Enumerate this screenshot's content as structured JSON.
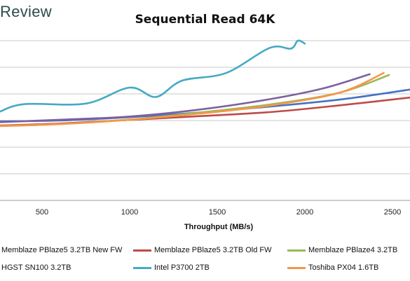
{
  "brand": "Review",
  "chart_data": {
    "type": "line",
    "title": "Sequential Read 64K",
    "xlabel": "Throughput (MB/s)",
    "ylabel": "",
    "x_ticks": [
      500,
      1000,
      1500,
      2000,
      2500
    ],
    "xlim": [
      260,
      2600
    ],
    "ylim": [
      0,
      8
    ],
    "grid": true,
    "legend_position": "bottom",
    "series": [
      {
        "name": "Memblaze PBlaze5 3.2TB New FW",
        "color": "#4472c4",
        "points": [
          [
            260,
            4.04
          ],
          [
            600,
            4.0
          ],
          [
            1000,
            3.83
          ],
          [
            1400,
            3.6
          ],
          [
            1800,
            3.3
          ],
          [
            2200,
            2.95
          ],
          [
            2600,
            2.45
          ]
        ]
      },
      {
        "name": "Memblaze PBlaze5 3.2TB Old FW",
        "color": "#be4b48",
        "points": [
          [
            260,
            4.25
          ],
          [
            600,
            4.15
          ],
          [
            1000,
            3.97
          ],
          [
            1400,
            3.78
          ],
          [
            1800,
            3.58
          ],
          [
            2200,
            3.24
          ],
          [
            2600,
            2.85
          ]
        ]
      },
      {
        "name": "Memblaze PBlaze4 3.2TB",
        "color": "#98b954",
        "points": [
          [
            260,
            4.27
          ],
          [
            600,
            4.18
          ],
          [
            1000,
            3.95
          ],
          [
            1400,
            3.6
          ],
          [
            1800,
            3.2
          ],
          [
            2200,
            2.6
          ],
          [
            2480,
            1.72
          ]
        ]
      },
      {
        "name": "HGST SN100 3.2TB",
        "color": "#7d60a0",
        "points": [
          [
            260,
            4.08
          ],
          [
            600,
            3.96
          ],
          [
            1000,
            3.8
          ],
          [
            1400,
            3.45
          ],
          [
            1800,
            2.93
          ],
          [
            2100,
            2.4
          ],
          [
            2370,
            1.68
          ]
        ]
      },
      {
        "name": "Intel P3700 2TB",
        "color": "#46aac4",
        "points": [
          [
            260,
            3.55
          ],
          [
            400,
            3.18
          ],
          [
            750,
            3.15
          ],
          [
            1000,
            2.35
          ],
          [
            1150,
            2.82
          ],
          [
            1300,
            2.0
          ],
          [
            1550,
            1.62
          ],
          [
            1800,
            0.36
          ],
          [
            1920,
            0.4
          ],
          [
            1960,
            0.0
          ],
          [
            2000,
            0.15
          ]
        ]
      },
      {
        "name": "Toshiba PX04 1.6TB",
        "color": "#f79646",
        "points": [
          [
            260,
            4.28
          ],
          [
            600,
            4.18
          ],
          [
            1000,
            3.96
          ],
          [
            1400,
            3.65
          ],
          [
            1800,
            3.25
          ],
          [
            2200,
            2.6
          ],
          [
            2450,
            1.62
          ]
        ]
      }
    ]
  }
}
